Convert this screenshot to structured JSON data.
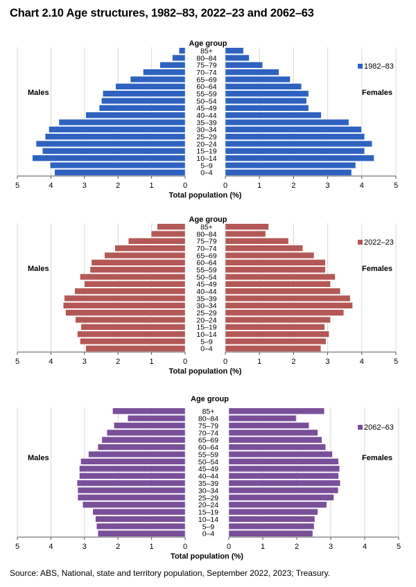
{
  "title": "Chart 2.10  Age structures, 1982–83, 2022–23 and 2062–63",
  "source": "Source: ABS, National, state and territory population, September 2022, 2023; Treasury.",
  "chart_data": [
    {
      "type": "bar",
      "subtype": "population-pyramid",
      "series_name": "1982–83",
      "color": "#2f62c0",
      "category_axis_title": "Age group",
      "xlabel": "Total population (%)",
      "male_label": "Males",
      "female_label": "Females",
      "categories": [
        "85+",
        "80–84",
        "75–79",
        "70–74",
        "65–69",
        "60–64",
        "55–59",
        "50–54",
        "45–49",
        "40–44",
        "35–39",
        "30–34",
        "25–29",
        "20–24",
        "15–19",
        "10–14",
        "5–9",
        "0–4"
      ],
      "males": [
        0.18,
        0.38,
        0.75,
        1.25,
        1.63,
        2.07,
        2.45,
        2.49,
        2.56,
        2.96,
        3.76,
        4.06,
        4.17,
        4.44,
        4.25,
        4.55,
        4.02,
        3.89
      ],
      "females": [
        0.53,
        0.7,
        1.09,
        1.57,
        1.9,
        2.23,
        2.44,
        2.38,
        2.44,
        2.81,
        3.62,
        3.99,
        4.08,
        4.3,
        4.08,
        4.36,
        3.82,
        3.7
      ],
      "xlim": [
        0,
        5
      ],
      "ticks": [
        "0",
        "1",
        "2",
        "3",
        "4",
        "5"
      ],
      "legend_position": "top-right",
      "grid": true
    },
    {
      "type": "bar",
      "subtype": "population-pyramid",
      "series_name": "2022–23",
      "color": "#b35856",
      "category_axis_title": "Age group",
      "xlabel": "Total population (%)",
      "male_label": "Males",
      "female_label": "Females",
      "categories": [
        "85+",
        "80–84",
        "75–79",
        "70–74",
        "65–69",
        "60–64",
        "55–59",
        "50–54",
        "45–49",
        "40–44",
        "35–39",
        "30–34",
        "25–29",
        "20–24",
        "15–19",
        "10–14",
        "5–9",
        "0–4"
      ],
      "males": [
        0.83,
        1.01,
        1.69,
        2.09,
        2.4,
        2.79,
        2.83,
        3.13,
        3.0,
        3.29,
        3.6,
        3.63,
        3.56,
        3.27,
        3.1,
        3.21,
        3.13,
        2.96
      ],
      "females": [
        1.27,
        1.18,
        1.85,
        2.27,
        2.6,
        2.93,
        2.93,
        3.22,
        3.08,
        3.37,
        3.66,
        3.73,
        3.47,
        3.08,
        2.91,
        3.04,
        2.95,
        2.8
      ],
      "xlim": [
        0,
        5
      ],
      "ticks": [
        "0",
        "1",
        "2",
        "3",
        "4",
        "5"
      ],
      "legend_position": "top-right",
      "grid": true
    },
    {
      "type": "bar",
      "subtype": "population-pyramid",
      "series_name": "2062–63",
      "color": "#7a4f9a",
      "category_axis_title": "Age group",
      "xlabel": "Total population (%)",
      "male_label": "Males",
      "female_label": "Females",
      "categories": [
        "85+",
        "80–84",
        "75–79",
        "70–74",
        "65–69",
        "60–64",
        "55–59",
        "50–54",
        "45–49",
        "40–44",
        "35–39",
        "30–34",
        "25–29",
        "20–24",
        "15–19",
        "10–14",
        "5–9",
        "0–4"
      ],
      "males": [
        2.16,
        1.71,
        2.12,
        2.33,
        2.48,
        2.6,
        2.88,
        3.11,
        3.15,
        3.15,
        3.22,
        3.2,
        3.2,
        3.05,
        2.75,
        2.67,
        2.64,
        2.6
      ],
      "females": [
        2.81,
        1.98,
        2.36,
        2.62,
        2.74,
        2.85,
        3.05,
        3.23,
        3.26,
        3.23,
        3.28,
        3.22,
        3.09,
        2.88,
        2.62,
        2.53,
        2.51,
        2.47
      ],
      "xlim": [
        0,
        5
      ],
      "ticks": [
        "0",
        "1",
        "2",
        "3",
        "4",
        "5"
      ],
      "legend_position": "top-right",
      "grid": true
    }
  ]
}
